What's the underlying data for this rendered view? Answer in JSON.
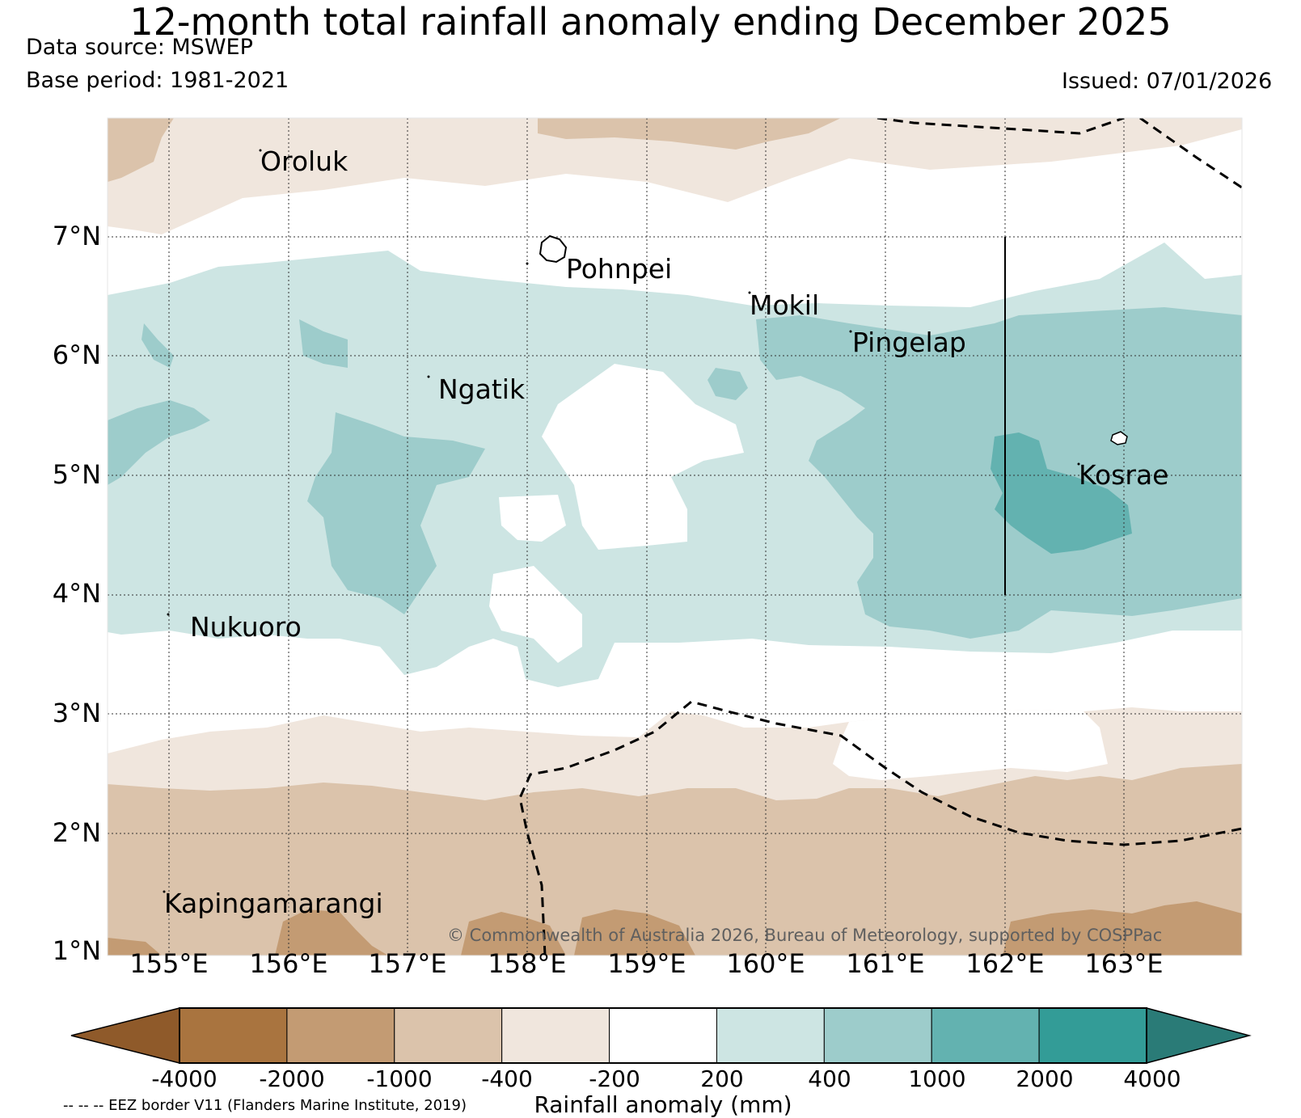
{
  "header": {
    "title": "12-month total rainfall anomaly ending December 2025",
    "data_source": "Data source: MSWEP",
    "base_period": "Base period: 1981-2021",
    "issued": "Issued: 07/01/2026"
  },
  "map": {
    "lat_labels": [
      "7°N",
      "6°N",
      "5°N",
      "4°N",
      "3°N",
      "2°N",
      "1°N"
    ],
    "lon_labels": [
      "155°E",
      "156°E",
      "157°E",
      "158°E",
      "159°E",
      "160°E",
      "161°E",
      "162°E",
      "163°E"
    ],
    "places": {
      "oroluk": "Oroluk",
      "pohnpei": "Pohnpei",
      "mokil": "Mokil",
      "pingelap": "Pingelap",
      "ngatik": "Ngatik",
      "kosrae": "Kosrae",
      "nukuoro": "Nukuoro",
      "kapingamarangi": "Kapingamarangi"
    },
    "copyright": "© Commonwealth of Australia 2026, Bureau of Meteorology, supported by COSPPac"
  },
  "colorbar": {
    "ticks": [
      "-4000",
      "-2000",
      "-1000",
      "-400",
      "-200",
      "200",
      "400",
      "1000",
      "2000",
      "4000"
    ],
    "colors": [
      "#8f5a2a",
      "#a9743f",
      "#c39b73",
      "#dbc3ab",
      "#f0e6dd",
      "#ffffff",
      "#cde5e3",
      "#9dcccb",
      "#63b2b0",
      "#339c97",
      "#2a7b77"
    ],
    "title": "Rainfall anomaly (mm)",
    "eez_note": "-- -- -- EEZ border V11 (Flanders Marine Institute, 2019)"
  }
}
